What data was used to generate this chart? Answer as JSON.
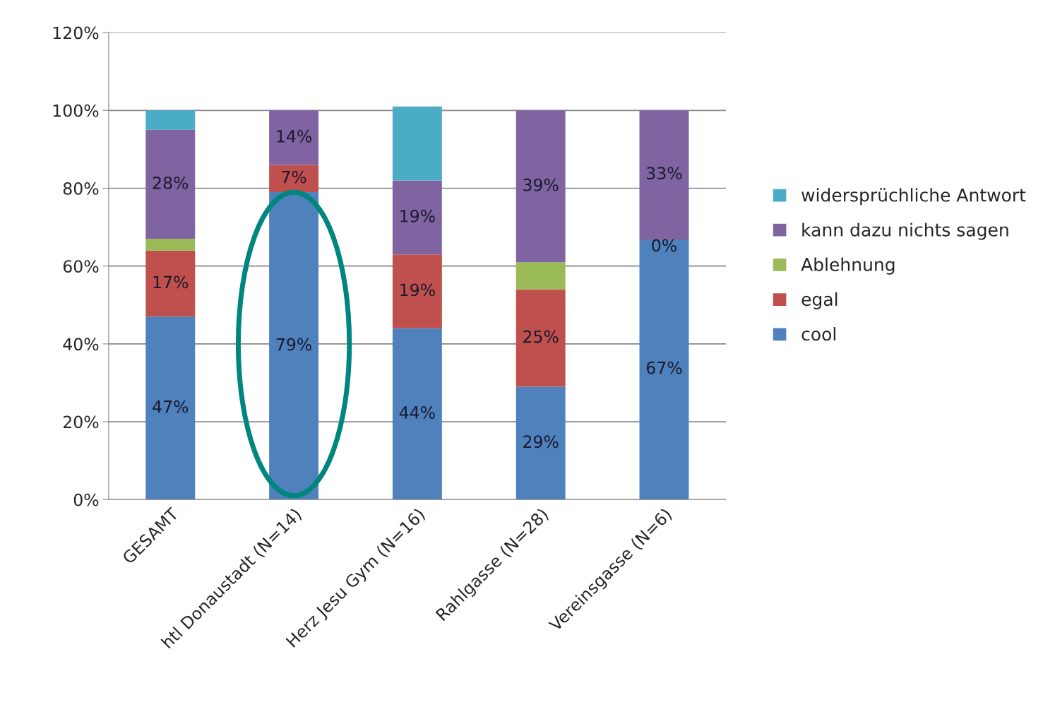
{
  "chart_data": {
    "type": "bar",
    "stacked": true,
    "categories": [
      "GESAMT",
      "htl Donaustadt (N=14)",
      "Herz Jesu Gym (N=16)",
      "Rahlgasse (N=28)",
      "Vereinsgasse (N=6)"
    ],
    "series": [
      {
        "name": "cool",
        "color": "#4f81bd",
        "values": [
          47,
          79,
          44,
          29,
          67
        ],
        "value_labels": [
          "47%",
          "79%",
          "44%",
          "29%",
          "67%"
        ]
      },
      {
        "name": "egal",
        "color": "#c0504d",
        "values": [
          17,
          7,
          19,
          25,
          0
        ],
        "value_labels": [
          "17%",
          "7%",
          "19%",
          "25%",
          "0%"
        ]
      },
      {
        "name": "Ablehnung",
        "color": "#9bbb59",
        "values": [
          3,
          null,
          null,
          7,
          null
        ],
        "value_labels": [
          null,
          null,
          null,
          null,
          null
        ]
      },
      {
        "name": "kann dazu nichts sagen",
        "color": "#8064a2",
        "values": [
          28,
          14,
          19,
          39,
          33
        ],
        "value_labels": [
          "28%",
          "14%",
          "19%",
          "39%",
          "33%"
        ]
      },
      {
        "name": "widersprüchliche Antwort",
        "color": "#4bacc6",
        "values": [
          5,
          null,
          19,
          null,
          null
        ],
        "value_labels": [
          null,
          null,
          null,
          null,
          null
        ]
      }
    ],
    "ylim": [
      0,
      120
    ],
    "yticks": [
      {
        "value": 0,
        "label": "0%"
      },
      {
        "value": 20,
        "label": "20%"
      },
      {
        "value": 40,
        "label": "40%"
      },
      {
        "value": 60,
        "label": "60%"
      },
      {
        "value": 80,
        "label": "80%"
      },
      {
        "value": 100,
        "label": "100%"
      },
      {
        "value": 120,
        "label": "120%"
      }
    ],
    "grid": "y",
    "legend": "right"
  }
}
